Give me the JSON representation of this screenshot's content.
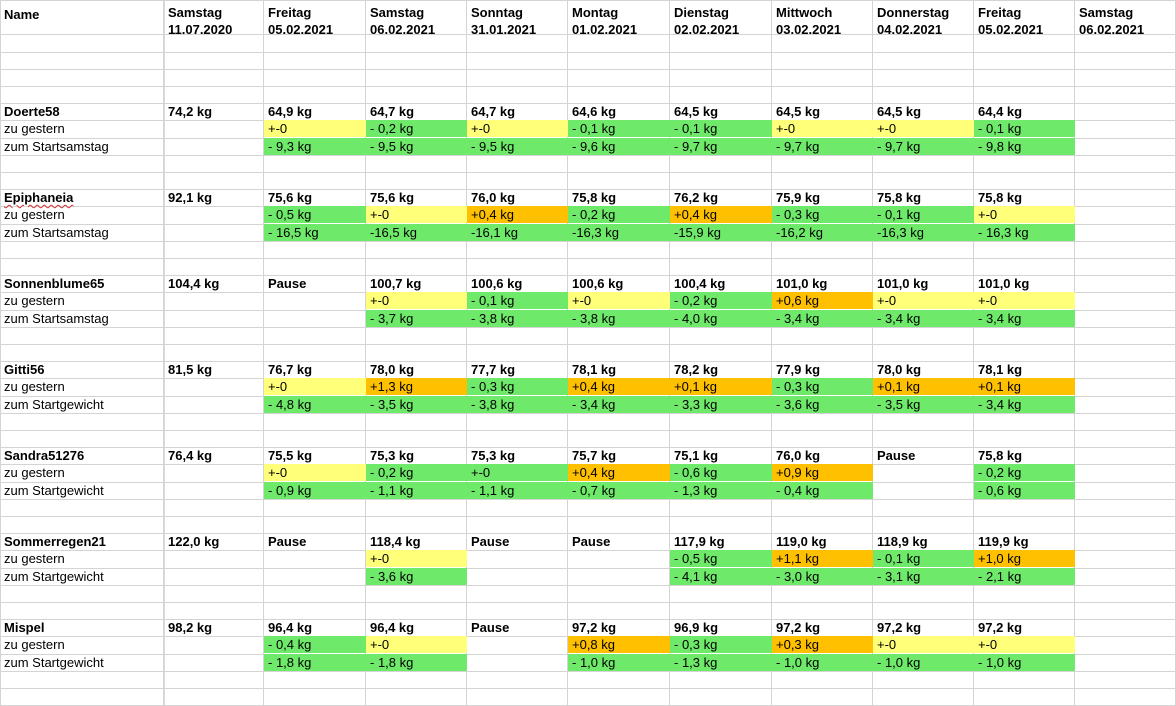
{
  "colors": {
    "green": "#6ee96a",
    "yellow": "#ffff7a",
    "orange": "#ffc000",
    "grid": "#d4d4d4"
  },
  "header": {
    "name_label": "Name",
    "columns": [
      {
        "day": "Samstag",
        "date": "11.07.2020"
      },
      {
        "day": "Freitag",
        "date": "05.02.2021"
      },
      {
        "day": "Samstag",
        "date": "06.02.2021"
      },
      {
        "day": "Sonntag",
        "date": "31.01.2021"
      },
      {
        "day": "Montag",
        "date": "01.02.2021"
      },
      {
        "day": "Dienstag",
        "date": "02.02.2021"
      },
      {
        "day": "Mittwoch",
        "date": "03.02.2021"
      },
      {
        "day": "Donnerstag",
        "date": "04.02.2021"
      },
      {
        "day": "Freitag",
        "date": "05.02.2021"
      },
      {
        "day": "Samstag",
        "date": "06.02.2021"
      }
    ]
  },
  "people": [
    {
      "name": "Doerte58",
      "spellcheck": false,
      "weights": [
        "74,2 kg",
        "64,9 kg",
        "64,7 kg",
        "64,7 kg",
        "64,6 kg",
        "64,5 kg",
        "64,5 kg",
        "64,5 kg",
        "64,4 kg",
        ""
      ],
      "row2_label": "zu gestern",
      "row2": [
        [
          "",
          ""
        ],
        [
          "+-0",
          "y"
        ],
        [
          "- 0,2 kg",
          "g"
        ],
        [
          "+-0",
          "y"
        ],
        [
          "- 0,1 kg",
          "g"
        ],
        [
          "- 0,1 kg",
          "g"
        ],
        [
          "+-0",
          "y"
        ],
        [
          "+-0",
          "y"
        ],
        [
          "- 0,1 kg",
          "g"
        ],
        [
          "",
          ""
        ]
      ],
      "row3_label": "zum Startsamstag",
      "row3": [
        [
          "",
          ""
        ],
        [
          "- 9,3 kg",
          "g"
        ],
        [
          "- 9,5 kg",
          "g"
        ],
        [
          "- 9,5 kg",
          "g"
        ],
        [
          "- 9,6 kg",
          "g"
        ],
        [
          "- 9,7 kg",
          "g"
        ],
        [
          "- 9,7 kg",
          "g"
        ],
        [
          "- 9,7 kg",
          "g"
        ],
        [
          "- 9,8 kg",
          "g"
        ],
        [
          "",
          ""
        ]
      ]
    },
    {
      "name": "Epiphaneia",
      "spellcheck": true,
      "weights": [
        "92,1 kg",
        "75,6 kg",
        "75,6 kg",
        "76,0 kg",
        "75,8 kg",
        "76,2 kg",
        "75,9 kg",
        "75,8 kg",
        "75,8 kg",
        ""
      ],
      "row2_label": "zu gestern",
      "row2": [
        [
          "",
          ""
        ],
        [
          "- 0,5 kg",
          "g"
        ],
        [
          "+-0",
          "y"
        ],
        [
          "+0,4 kg",
          "o"
        ],
        [
          "- 0,2 kg",
          "g"
        ],
        [
          "+0,4 kg",
          "o"
        ],
        [
          "- 0,3 kg",
          "g"
        ],
        [
          "- 0,1 kg",
          "g"
        ],
        [
          "+-0",
          "y"
        ],
        [
          "",
          ""
        ]
      ],
      "row3_label": "zum Startsamstag",
      "row3": [
        [
          "",
          ""
        ],
        [
          "- 16,5 kg",
          "g"
        ],
        [
          "-16,5 kg",
          "g"
        ],
        [
          "-16,1 kg",
          "g"
        ],
        [
          "-16,3 kg",
          "g"
        ],
        [
          "-15,9 kg",
          "g"
        ],
        [
          "-16,2 kg",
          "g"
        ],
        [
          "-16,3 kg",
          "g"
        ],
        [
          "- 16,3 kg",
          "g"
        ],
        [
          "",
          ""
        ]
      ]
    },
    {
      "name": "Sonnenblume65",
      "spellcheck": false,
      "weights": [
        "104,4 kg",
        "Pause",
        "100,7 kg",
        "100,6 kg",
        "100,6 kg",
        "100,4 kg",
        "101,0 kg",
        "101,0 kg",
        "101,0 kg",
        ""
      ],
      "row2_label": "zu gestern",
      "row2": [
        [
          "",
          ""
        ],
        [
          "",
          ""
        ],
        [
          "+-0",
          "y"
        ],
        [
          "- 0,1 kg",
          "g"
        ],
        [
          "+-0",
          "y"
        ],
        [
          "- 0,2 kg",
          "g"
        ],
        [
          "+0,6 kg",
          "o"
        ],
        [
          "+-0",
          "y"
        ],
        [
          "+-0",
          "y"
        ],
        [
          "",
          ""
        ]
      ],
      "row3_label": "zum Startsamstag",
      "row3": [
        [
          "",
          ""
        ],
        [
          "",
          ""
        ],
        [
          "- 3,7 kg",
          "g"
        ],
        [
          "- 3,8 kg",
          "g"
        ],
        [
          "- 3,8 kg",
          "g"
        ],
        [
          "- 4,0 kg",
          "g"
        ],
        [
          "- 3,4 kg",
          "g"
        ],
        [
          "- 3,4 kg",
          "g"
        ],
        [
          "- 3,4 kg",
          "g"
        ],
        [
          "",
          ""
        ]
      ]
    },
    {
      "name": "Gitti56",
      "spellcheck": false,
      "weights": [
        "81,5 kg",
        "76,7 kg",
        "78,0 kg",
        "77,7 kg",
        "78,1 kg",
        "78,2 kg",
        "77,9 kg",
        "78,0 kg",
        "78,1 kg",
        ""
      ],
      "row2_label": "zu gestern",
      "row2": [
        [
          "",
          ""
        ],
        [
          "+-0",
          "y"
        ],
        [
          "+1,3 kg",
          "o"
        ],
        [
          "- 0,3 kg",
          "g"
        ],
        [
          "+0,4 kg",
          "o"
        ],
        [
          "+0,1 kg",
          "o"
        ],
        [
          "- 0,3 kg",
          "g"
        ],
        [
          "+0,1 kg",
          "o"
        ],
        [
          "+0,1 kg",
          "o"
        ],
        [
          "",
          ""
        ]
      ],
      "row3_label": "zum Startgewicht",
      "row3": [
        [
          "",
          ""
        ],
        [
          "- 4,8 kg",
          "g"
        ],
        [
          "- 3,5 kg",
          "g"
        ],
        [
          "- 3,8 kg",
          "g"
        ],
        [
          "- 3,4 kg",
          "g"
        ],
        [
          "- 3,3 kg",
          "g"
        ],
        [
          "- 3,6 kg",
          "g"
        ],
        [
          "- 3,5 kg",
          "g"
        ],
        [
          "- 3,4 kg",
          "g"
        ],
        [
          "",
          ""
        ]
      ]
    },
    {
      "name": "Sandra51276",
      "spellcheck": false,
      "weights": [
        "76,4 kg",
        "75,5 kg",
        "75,3 kg",
        "75,3 kg",
        "75,7 kg",
        "75,1 kg",
        "76,0 kg",
        "Pause",
        "75,8 kg",
        ""
      ],
      "row2_label": "zu gestern",
      "row2": [
        [
          "",
          ""
        ],
        [
          "+-0",
          "y"
        ],
        [
          "- 0,2 kg",
          "g"
        ],
        [
          "+-0",
          "g"
        ],
        [
          "+0,4 kg",
          "o"
        ],
        [
          "- 0,6 kg",
          "g"
        ],
        [
          "+0,9 kg",
          "o"
        ],
        [
          "",
          ""
        ],
        [
          "- 0,2 kg",
          "g"
        ],
        [
          "",
          ""
        ]
      ],
      "row3_label": "zum Startgewicht",
      "row3": [
        [
          "",
          ""
        ],
        [
          "- 0,9 kg",
          "g"
        ],
        [
          "- 1,1 kg",
          "g"
        ],
        [
          "- 1,1 kg",
          "g"
        ],
        [
          "- 0,7 kg",
          "g"
        ],
        [
          "- 1,3 kg",
          "g"
        ],
        [
          "- 0,4 kg",
          "g"
        ],
        [
          "",
          ""
        ],
        [
          "- 0,6 kg",
          "g"
        ],
        [
          "",
          ""
        ]
      ]
    },
    {
      "name": "Sommerregen21",
      "spellcheck": false,
      "weights": [
        "122,0 kg",
        "Pause",
        "118,4 kg",
        "Pause",
        "Pause",
        "117,9 kg",
        "119,0 kg",
        "118,9 kg",
        "119,9 kg",
        ""
      ],
      "row2_label": "zu gestern",
      "row2": [
        [
          "",
          ""
        ],
        [
          "",
          ""
        ],
        [
          "+-0",
          "y"
        ],
        [
          "",
          ""
        ],
        [
          "",
          ""
        ],
        [
          "- 0,5 kg",
          "g"
        ],
        [
          "+1,1 kg",
          "o"
        ],
        [
          "- 0,1 kg",
          "g"
        ],
        [
          "+1,0 kg",
          "o"
        ],
        [
          "",
          ""
        ]
      ],
      "row3_label": "zum Startgewicht",
      "row3": [
        [
          "",
          ""
        ],
        [
          "",
          ""
        ],
        [
          "- 3,6 kg",
          "g"
        ],
        [
          "",
          ""
        ],
        [
          "",
          ""
        ],
        [
          "- 4,1 kg",
          "g"
        ],
        [
          "- 3,0 kg",
          "g"
        ],
        [
          "- 3,1 kg",
          "g"
        ],
        [
          "- 2,1 kg",
          "g"
        ],
        [
          "",
          ""
        ]
      ]
    },
    {
      "name": "Mispel",
      "spellcheck": false,
      "weights": [
        "98,2 kg",
        "96,4 kg",
        "96,4 kg",
        "Pause",
        "97,2 kg",
        "96,9 kg",
        "97,2 kg",
        "97,2 kg",
        "97,2 kg",
        ""
      ],
      "row2_label": "zu gestern",
      "row2": [
        [
          "",
          ""
        ],
        [
          "- 0,4 kg",
          "g"
        ],
        [
          "+-0",
          "y"
        ],
        [
          "",
          ""
        ],
        [
          "+0,8 kg",
          "o"
        ],
        [
          "- 0,3 kg",
          "g"
        ],
        [
          "+0,3 kg",
          "o"
        ],
        [
          "+-0",
          "y"
        ],
        [
          "+-0",
          "y"
        ],
        [
          "",
          ""
        ]
      ],
      "row3_label": "zum Startgewicht",
      "row3": [
        [
          "",
          ""
        ],
        [
          "- 1,8 kg",
          "g"
        ],
        [
          "- 1,8 kg",
          "g"
        ],
        [
          "",
          ""
        ],
        [
          "- 1,0 kg",
          "g"
        ],
        [
          "- 1,3 kg",
          "g"
        ],
        [
          "- 1,0 kg",
          "g"
        ],
        [
          "- 1,0 kg",
          "g"
        ],
        [
          "- 1,0 kg",
          "g"
        ],
        [
          "",
          ""
        ]
      ]
    }
  ]
}
